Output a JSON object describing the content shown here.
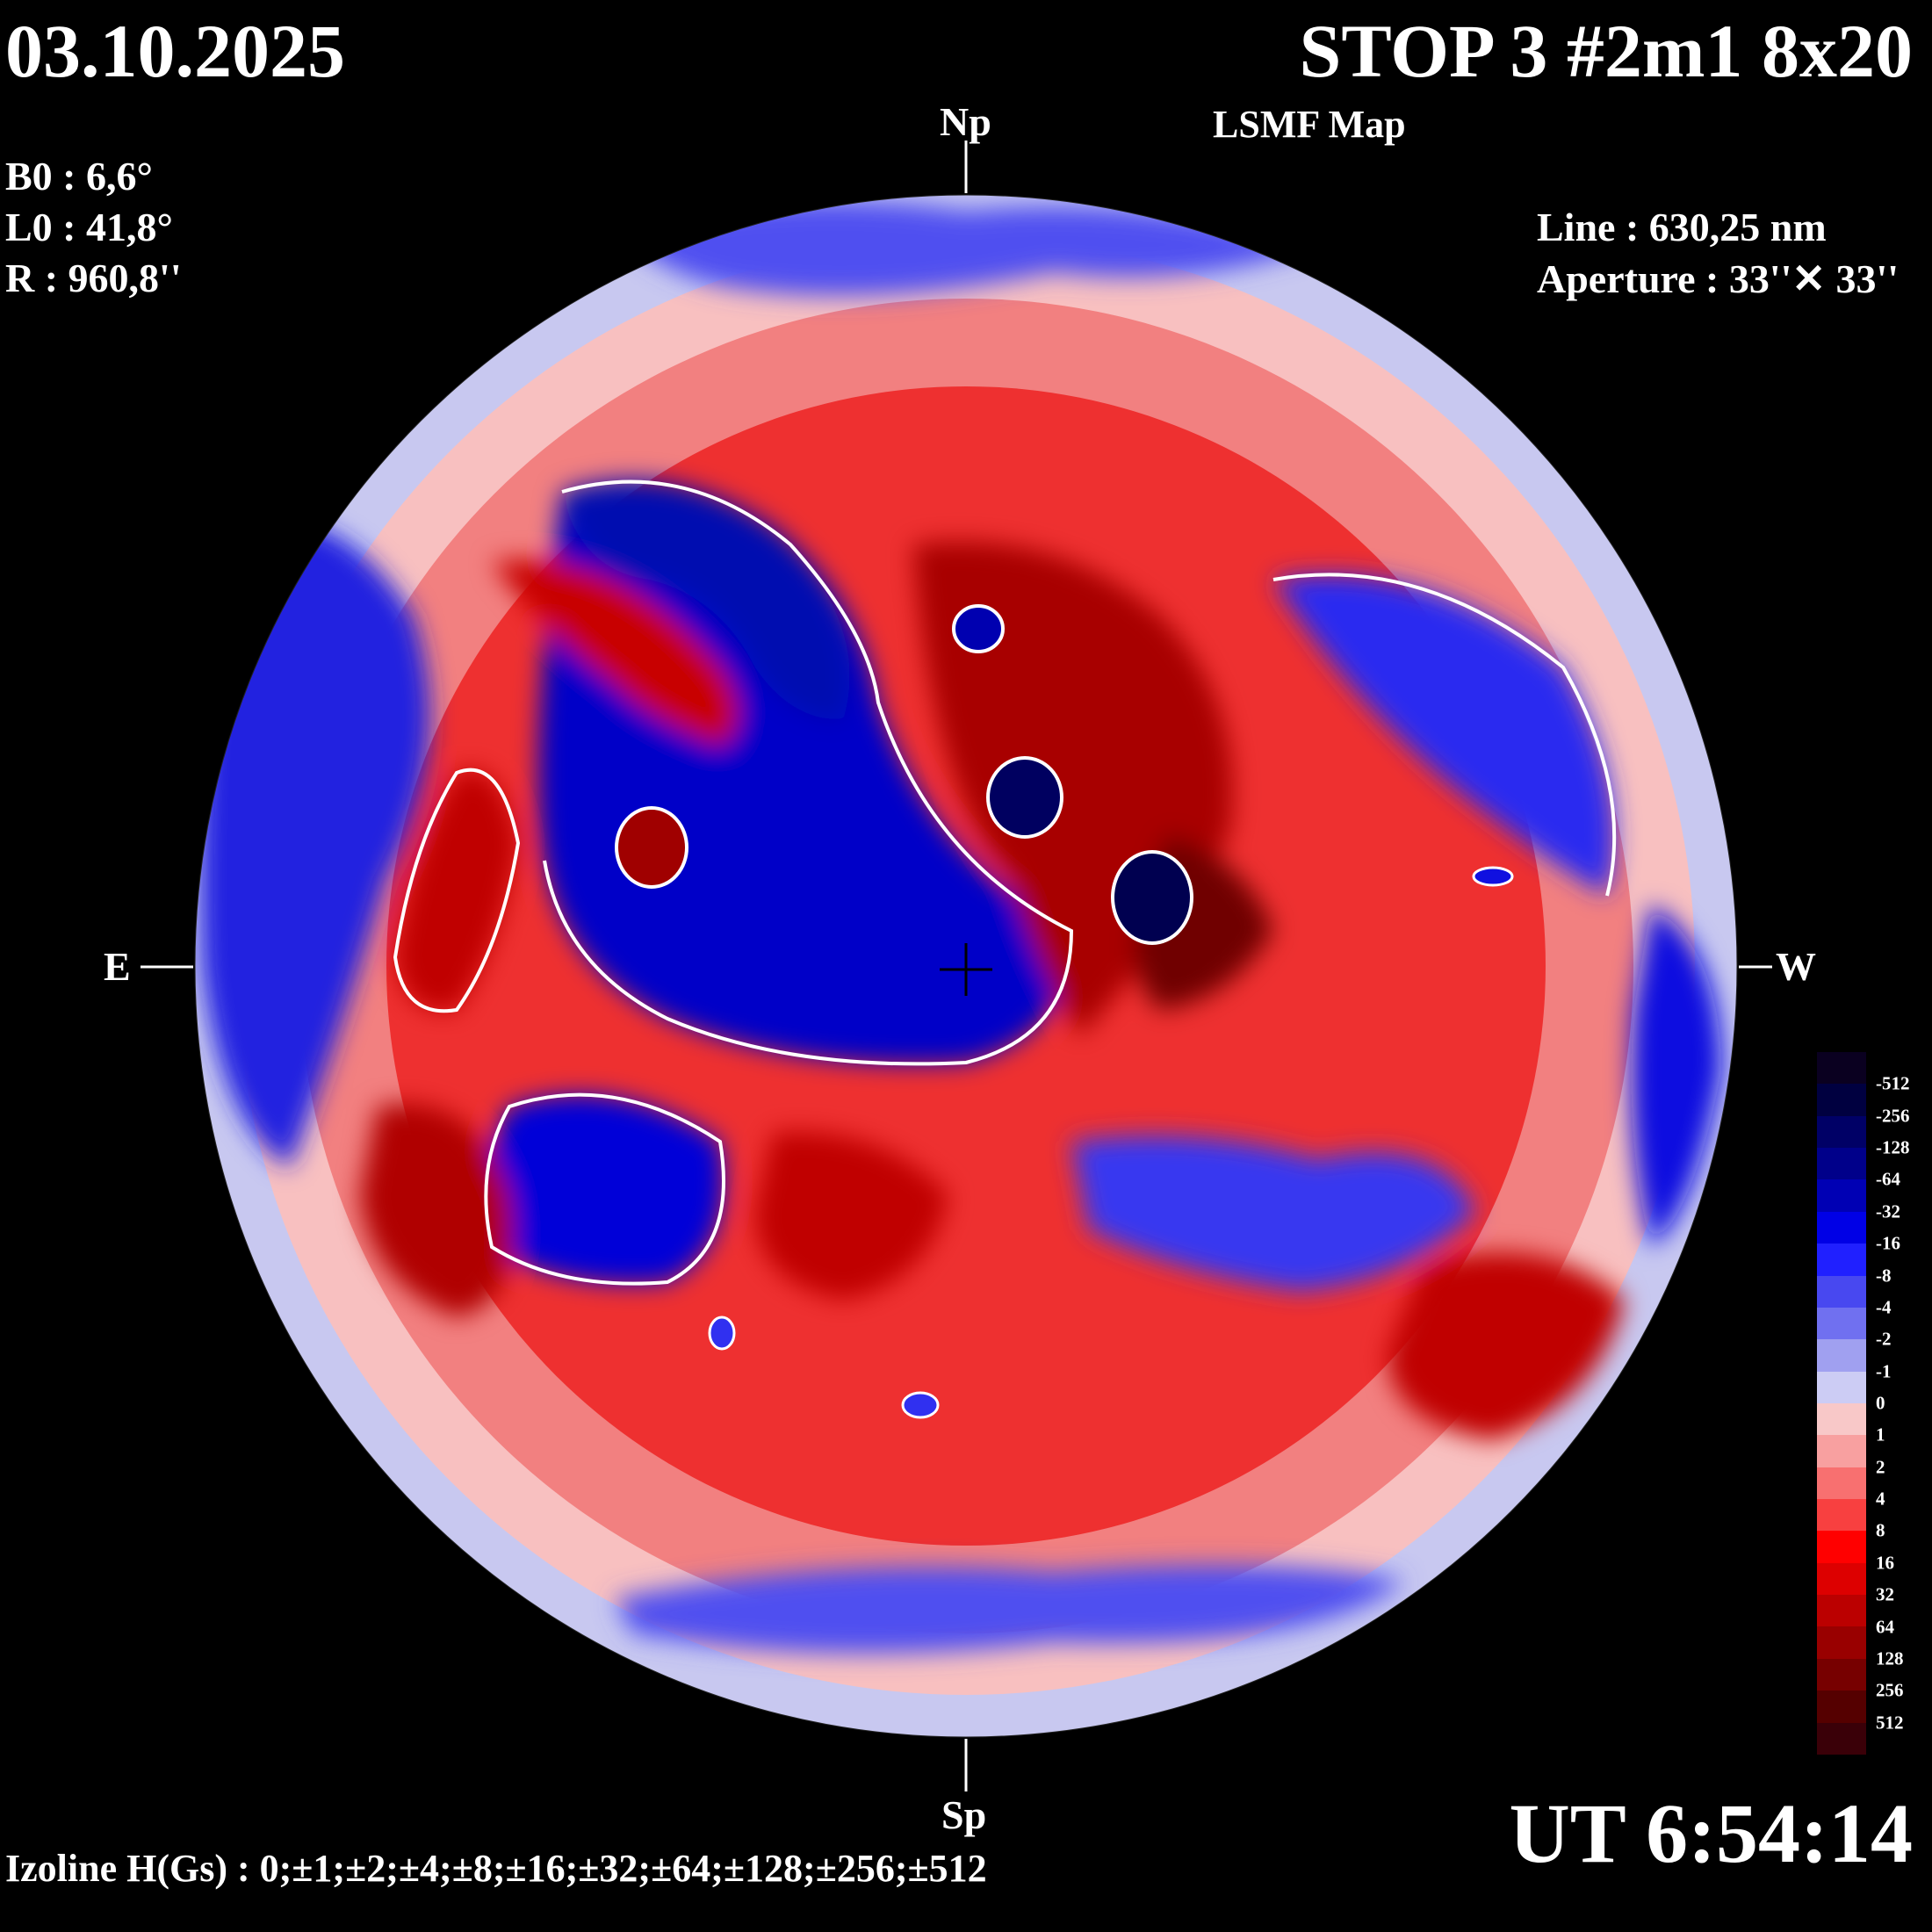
{
  "header": {
    "date": "03.10.2025",
    "title": "STOP 3 #2m1 8x20",
    "subtitle": "LSMF  Map"
  },
  "ephemeris": {
    "b0": "B0 : 6,6°",
    "l0": "L0 : 41,8°",
    "r": "R  : 960,8''"
  },
  "instrument": {
    "line": "Line :  630,25 nm",
    "aperture": "Aperture : 33''✕ 33''"
  },
  "orientation": {
    "north": "Np",
    "south": "Sp",
    "east": "E",
    "west": "W"
  },
  "time": "UT 6:54:14",
  "isolines": "Izoline H(Gs) : 0;±1;±2;±4;±8;±16;±32;±64;±128;±256;±512",
  "scale": {
    "labels": [
      "-512",
      "-256",
      "-128",
      "-64",
      "-32",
      "-16",
      "-8",
      "-4",
      "-2",
      "-1",
      "0",
      "1",
      "2",
      "4",
      "8",
      "16",
      "32",
      "64",
      "128",
      "256",
      "512"
    ],
    "colors": [
      "#0a0020",
      "#000040",
      "#000066",
      "#00008a",
      "#0000b4",
      "#0000e6",
      "#2020ff",
      "#4848f0",
      "#7070f0",
      "#a0a0f0",
      "#ccccf4",
      "#f8c8c8",
      "#f8a0a0",
      "#f87070",
      "#f84040",
      "#ff0000",
      "#dd0000",
      "#bb0000",
      "#990000",
      "#770000",
      "#550000",
      "#3a0008"
    ]
  },
  "colors": {
    "positive": "#e80000",
    "negative": "#0000e0",
    "background": "#000000",
    "isoline_zero": "#ffffff"
  }
}
